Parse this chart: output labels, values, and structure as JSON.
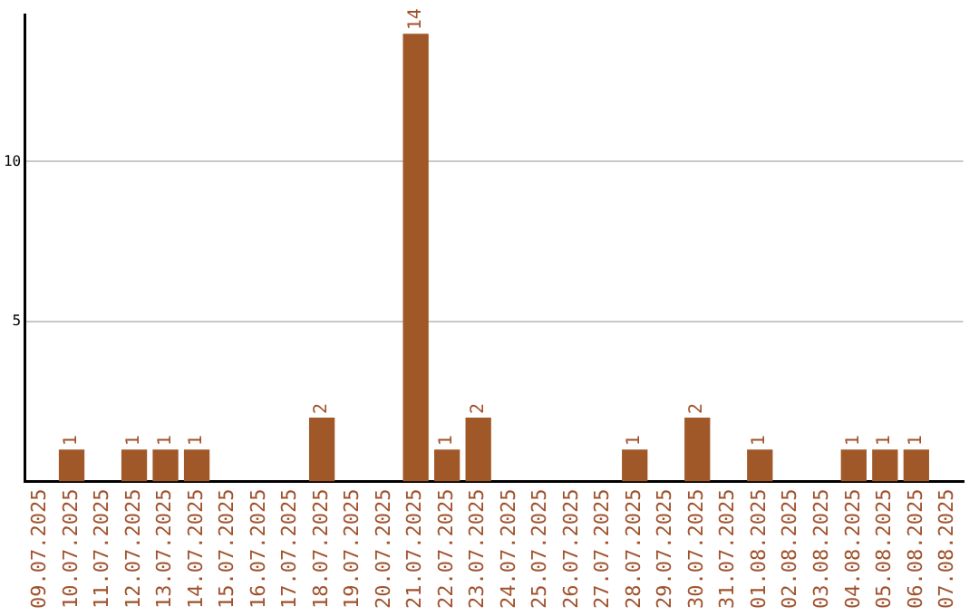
{
  "chart_data": {
    "type": "bar",
    "categories": [
      "09.07.2025",
      "10.07.2025",
      "11.07.2025",
      "12.07.2025",
      "13.07.2025",
      "14.07.2025",
      "15.07.2025",
      "16.07.2025",
      "17.07.2025",
      "18.07.2025",
      "19.07.2025",
      "20.07.2025",
      "21.07.2025",
      "22.07.2025",
      "23.07.2025",
      "24.07.2025",
      "25.07.2025",
      "26.07.2025",
      "27.07.2025",
      "28.07.2025",
      "29.07.2025",
      "30.07.2025",
      "31.07.2025",
      "01.08.2025",
      "02.08.2025",
      "03.08.2025",
      "04.08.2025",
      "05.08.2025",
      "06.08.2025",
      "07.08.2025"
    ],
    "values": [
      0,
      1,
      0,
      1,
      1,
      1,
      0,
      0,
      0,
      2,
      0,
      0,
      14,
      1,
      2,
      0,
      0,
      0,
      0,
      1,
      0,
      2,
      0,
      1,
      0,
      0,
      1,
      1,
      1,
      0
    ],
    "value_labels": [
      null,
      "1",
      null,
      "1",
      "1",
      "1",
      null,
      null,
      null,
      "2",
      null,
      null,
      "14",
      "1",
      "2",
      null,
      null,
      null,
      null,
      "1",
      null,
      "2",
      null,
      "1",
      null,
      null,
      "1",
      "1",
      "1",
      null
    ],
    "color": "#a05828",
    "ylim": [
      0,
      14.6
    ],
    "yticks": [
      5,
      10
    ],
    "grid": "y",
    "legend": false
  }
}
